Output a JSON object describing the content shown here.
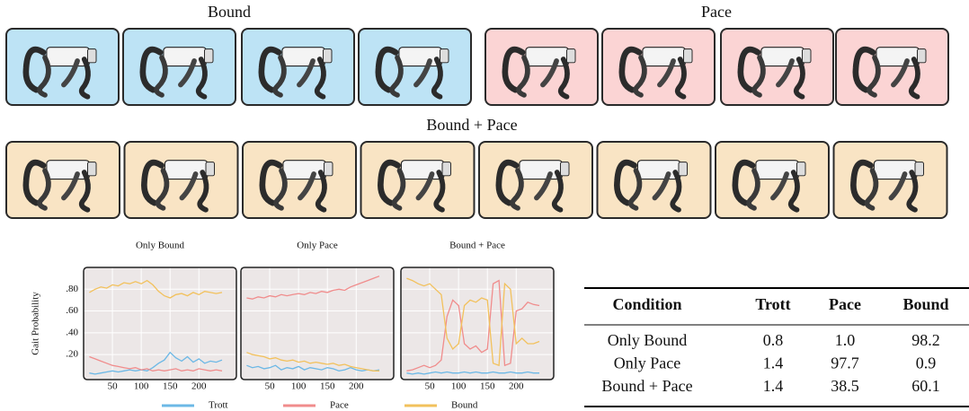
{
  "panels": {
    "left_title": "Bound",
    "right_title": "Pace",
    "bottom_title": "Bound + Pace"
  },
  "chart_data": [
    {
      "type": "line",
      "title": "Only Bound",
      "ylabel": "Gait Probability",
      "x": [
        10,
        20,
        30,
        40,
        50,
        60,
        70,
        80,
        90,
        100,
        110,
        120,
        130,
        140,
        150,
        160,
        170,
        180,
        190,
        200,
        210,
        220,
        230,
        240
      ],
      "xlim": [
        0,
        265
      ],
      "xticks": [
        50,
        100,
        150,
        200
      ],
      "ylim": [
        -0.03,
        1.0
      ],
      "yticks": [
        {
          "value": 0.2,
          "label": ".20"
        },
        {
          "value": 0.4,
          "label": ".40"
        },
        {
          "value": 0.6,
          "label": ".60"
        },
        {
          "value": 0.8,
          "label": ".80"
        }
      ],
      "grid": true,
      "series": [
        {
          "name": "Trott",
          "color": "#6cb8e6",
          "values": [
            0.03,
            0.02,
            0.03,
            0.04,
            0.05,
            0.04,
            0.05,
            0.06,
            0.05,
            0.06,
            0.05,
            0.08,
            0.12,
            0.15,
            0.22,
            0.17,
            0.14,
            0.18,
            0.13,
            0.16,
            0.12,
            0.14,
            0.13,
            0.15
          ]
        },
        {
          "name": "Pace",
          "color": "#f08c8c",
          "values": [
            0.18,
            0.16,
            0.14,
            0.12,
            0.1,
            0.09,
            0.08,
            0.07,
            0.08,
            0.06,
            0.07,
            0.05,
            0.06,
            0.05,
            0.06,
            0.07,
            0.05,
            0.06,
            0.05,
            0.07,
            0.06,
            0.05,
            0.06,
            0.05
          ]
        },
        {
          "name": "Bound",
          "color": "#f2c15c",
          "values": [
            0.77,
            0.8,
            0.82,
            0.81,
            0.84,
            0.83,
            0.86,
            0.85,
            0.87,
            0.85,
            0.88,
            0.84,
            0.78,
            0.74,
            0.72,
            0.75,
            0.76,
            0.74,
            0.77,
            0.75,
            0.78,
            0.77,
            0.76,
            0.77
          ]
        }
      ]
    },
    {
      "type": "line",
      "title": "Only Pace",
      "x": [
        10,
        20,
        30,
        40,
        50,
        60,
        70,
        80,
        90,
        100,
        110,
        120,
        130,
        140,
        150,
        160,
        170,
        180,
        190,
        200,
        210,
        220,
        230,
        240
      ],
      "xlim": [
        0,
        265
      ],
      "xticks": [
        50,
        100,
        150,
        200
      ],
      "ylim": [
        -0.03,
        1.0
      ],
      "yticks": [
        0.2,
        0.4,
        0.6,
        0.8
      ],
      "grid": true,
      "series": [
        {
          "color": "#6cb8e6",
          "values": [
            0.1,
            0.08,
            0.09,
            0.07,
            0.08,
            0.1,
            0.06,
            0.08,
            0.07,
            0.09,
            0.06,
            0.08,
            0.07,
            0.06,
            0.08,
            0.07,
            0.05,
            0.06,
            0.08,
            0.06,
            0.05,
            0.06,
            0.05,
            0.06
          ]
        },
        {
          "color": "#f08c8c",
          "values": [
            0.72,
            0.71,
            0.73,
            0.72,
            0.74,
            0.73,
            0.75,
            0.74,
            0.75,
            0.76,
            0.75,
            0.77,
            0.76,
            0.78,
            0.77,
            0.79,
            0.8,
            0.79,
            0.82,
            0.84,
            0.86,
            0.88,
            0.9,
            0.92
          ]
        },
        {
          "color": "#f2c15c",
          "values": [
            0.22,
            0.2,
            0.19,
            0.18,
            0.16,
            0.17,
            0.15,
            0.14,
            0.15,
            0.13,
            0.14,
            0.12,
            0.13,
            0.12,
            0.11,
            0.12,
            0.1,
            0.11,
            0.09,
            0.08,
            0.07,
            0.06,
            0.05,
            0.05
          ]
        }
      ]
    },
    {
      "type": "line",
      "title": "Bound + Pace",
      "x": [
        10,
        20,
        30,
        40,
        50,
        60,
        70,
        80,
        90,
        100,
        110,
        120,
        130,
        140,
        150,
        160,
        170,
        180,
        190,
        200,
        210,
        220,
        230,
        240
      ],
      "xlim": [
        0,
        265
      ],
      "xticks": [
        50,
        100,
        150,
        200
      ],
      "ylim": [
        -0.03,
        1.0
      ],
      "yticks": [
        0.2,
        0.4,
        0.6,
        0.8
      ],
      "grid": true,
      "series": [
        {
          "color": "#6cb8e6",
          "values": [
            0.03,
            0.02,
            0.03,
            0.02,
            0.03,
            0.04,
            0.03,
            0.04,
            0.03,
            0.03,
            0.04,
            0.03,
            0.04,
            0.03,
            0.03,
            0.04,
            0.03,
            0.03,
            0.04,
            0.03,
            0.03,
            0.04,
            0.03,
            0.03
          ]
        },
        {
          "color": "#f08c8c",
          "values": [
            0.05,
            0.06,
            0.08,
            0.1,
            0.08,
            0.1,
            0.15,
            0.55,
            0.7,
            0.65,
            0.3,
            0.25,
            0.28,
            0.22,
            0.25,
            0.85,
            0.88,
            0.1,
            0.12,
            0.6,
            0.62,
            0.68,
            0.66,
            0.65
          ]
        },
        {
          "color": "#f2c15c",
          "values": [
            0.9,
            0.88,
            0.85,
            0.83,
            0.85,
            0.8,
            0.75,
            0.35,
            0.25,
            0.3,
            0.65,
            0.7,
            0.68,
            0.72,
            0.7,
            0.12,
            0.1,
            0.85,
            0.8,
            0.3,
            0.35,
            0.3,
            0.3,
            0.32
          ]
        }
      ]
    }
  ],
  "table": {
    "header": [
      "Condition",
      "Trott",
      "Pace",
      "Bound"
    ],
    "rows": [
      [
        "Only Bound",
        "0.8",
        "1.0",
        "98.2"
      ],
      [
        "Only Pace",
        "1.4",
        "97.7",
        "0.9"
      ],
      [
        "Bound + Pace",
        "1.4",
        "38.5",
        "60.1"
      ]
    ]
  }
}
